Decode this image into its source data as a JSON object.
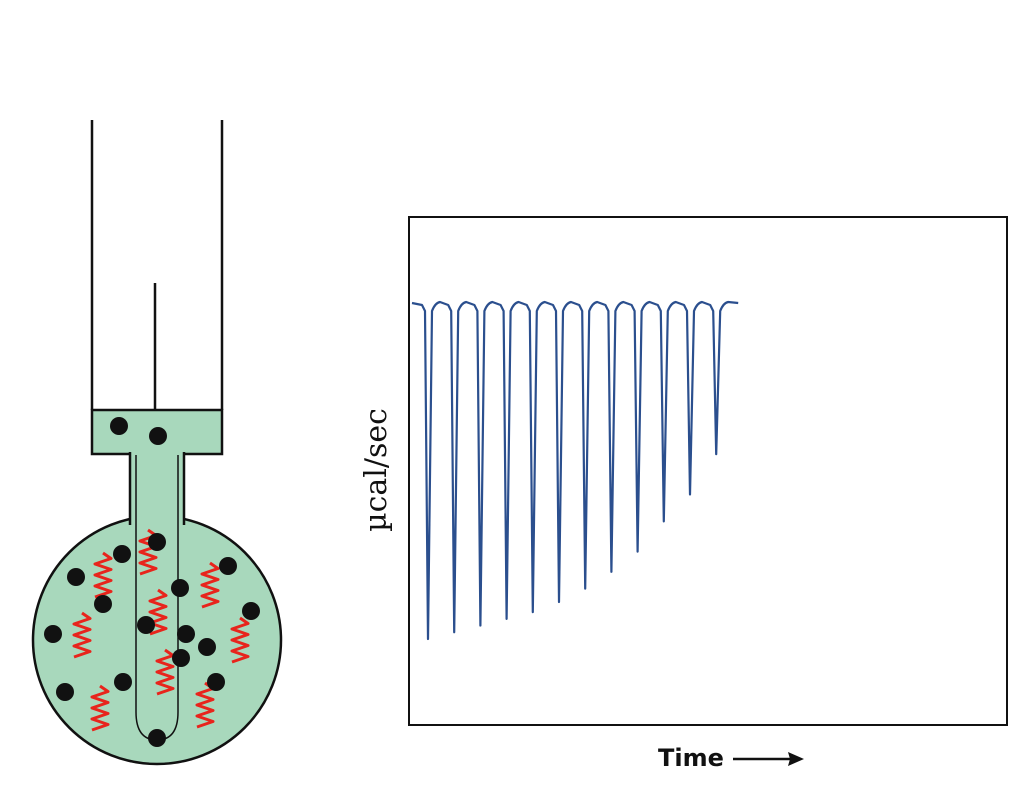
{
  "colors": {
    "solution_fill": "#a8d8bc",
    "ligand_dot": "#111111",
    "protein_coil": "#e8241c",
    "trace": "#2b4f8e",
    "outline": "#111111"
  },
  "icons": {
    "syringe": "syringe-icon",
    "sample_cell": "sample-cell-icon",
    "arrow": "arrow-right-icon"
  },
  "chart_data": {
    "type": "line",
    "xlabel": "Time",
    "ylabel": "µcal/sec",
    "baseline": 0,
    "grid": false,
    "legend": "none",
    "injections": [
      1,
      2,
      3,
      4,
      5,
      6,
      7,
      8,
      9,
      10,
      11,
      12
    ],
    "peak_values": [
      -1.0,
      -0.98,
      -0.96,
      -0.94,
      -0.92,
      -0.89,
      -0.85,
      -0.8,
      -0.74,
      -0.65,
      -0.57,
      -0.45
    ],
    "ylim": [
      -1.2,
      0.3
    ]
  }
}
